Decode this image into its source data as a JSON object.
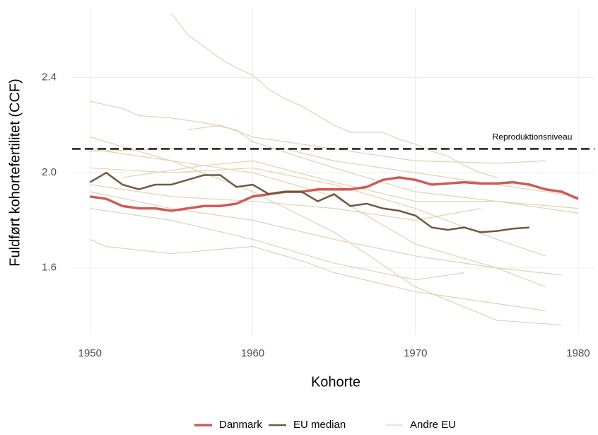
{
  "chart_data": {
    "type": "line",
    "xlabel": "Kohorte",
    "ylabel": "Fuldført kohortefertilitet (CCF)",
    "xlim": [
      1948.9,
      1981
    ],
    "ylim": [
      1.32,
      2.69
    ],
    "xticks": [
      1950,
      1960,
      1970,
      1980
    ],
    "yticks": [
      {
        "value": 1.6,
        "label": "1.6"
      },
      {
        "value": 2.0,
        "label": "2.0"
      },
      {
        "value": 2.4,
        "label": "2.4"
      }
    ],
    "grid": true,
    "legend": "bottom",
    "reference_line": {
      "value": 2.1,
      "label": "Reproduktionsniveau"
    },
    "series": [
      {
        "name": "Danmark",
        "color": "#cd5c57",
        "x": [
          1950,
          1951,
          1952,
          1953,
          1954,
          1955,
          1956,
          1957,
          1958,
          1959,
          1960,
          1961,
          1962,
          1963,
          1964,
          1965,
          1966,
          1967,
          1968,
          1969,
          1970,
          1971,
          1972,
          1973,
          1974,
          1975,
          1976,
          1977,
          1978,
          1979,
          1980
        ],
        "values": [
          1.9,
          1.89,
          1.86,
          1.85,
          1.85,
          1.84,
          1.85,
          1.86,
          1.86,
          1.87,
          1.9,
          1.91,
          1.92,
          1.92,
          1.93,
          1.93,
          1.93,
          1.94,
          1.97,
          1.98,
          1.97,
          1.95,
          1.955,
          1.96,
          1.955,
          1.955,
          1.96,
          1.95,
          1.93,
          1.92,
          1.89
        ]
      },
      {
        "name": "EU median",
        "color": "#6e5a42",
        "x": [
          1950,
          1951,
          1952,
          1953,
          1954,
          1955,
          1956,
          1957,
          1958,
          1959,
          1960,
          1961,
          1962,
          1963,
          1964,
          1965,
          1966,
          1967,
          1968,
          1969,
          1970,
          1971,
          1972,
          1973,
          1974,
          1975,
          1976,
          1977
        ],
        "values": [
          1.96,
          2.0,
          1.95,
          1.93,
          1.95,
          1.95,
          1.97,
          1.99,
          1.99,
          1.94,
          1.95,
          1.91,
          1.92,
          1.92,
          1.88,
          1.91,
          1.86,
          1.87,
          1.85,
          1.84,
          1.82,
          1.77,
          1.76,
          1.77,
          1.75,
          1.755,
          1.765,
          1.77
        ]
      },
      {
        "name": "Andre EU",
        "color": "#e2d2b0",
        "lines": [
          {
            "x": [
              1955,
              1956,
              1957,
              1958,
              1959,
              1960,
              1961,
              1962,
              1963,
              1964,
              1965,
              1966,
              1967,
              1968,
              1969,
              1970,
              1971,
              1972,
              1973,
              1974,
              1975
            ],
            "values": [
              2.67,
              2.58,
              2.53,
              2.48,
              2.44,
              2.41,
              2.35,
              2.31,
              2.28,
              2.24,
              2.2,
              2.17,
              2.17,
              2.17,
              2.14,
              2.12,
              2.09,
              2.07,
              2.03,
              2.0,
              1.98
            ]
          },
          {
            "x": [
              1950,
              1952,
              1953,
              1955,
              1957,
              1959,
              1960,
              1965,
              1970,
              1975,
              1980
            ],
            "values": [
              2.3,
              2.27,
              2.24,
              2.23,
              2.21,
              2.18,
              2.13,
              2.02,
              1.92,
              1.88,
              1.83
            ]
          },
          {
            "x": [
              1950,
              1955,
              1960,
              1965,
              1970,
              1975,
              1979
            ],
            "values": [
              2.15,
              2.05,
              1.92,
              1.75,
              1.52,
              1.38,
              1.36
            ]
          },
          {
            "x": [
              1950,
              1951,
              1955,
              1960,
              1963,
              1965,
              1970,
              1975,
              1978
            ],
            "values": [
              1.72,
              1.69,
              1.66,
              1.69,
              1.63,
              1.58,
              1.5,
              1.45,
              1.42
            ]
          },
          {
            "x": [
              1950,
              1955,
              1962,
              1965,
              1970,
              1975,
              1980
            ],
            "values": [
              2.09,
              2.1,
              2.1,
              2.05,
              2.0,
              1.95,
              1.9
            ]
          },
          {
            "x": [
              1956,
              1958,
              1960,
              1965,
              1970,
              1975,
              1978
            ],
            "values": [
              2.18,
              2.2,
              2.15,
              2.1,
              2.05,
              2.04,
              2.05
            ]
          },
          {
            "x": [
              1950,
              1955,
              1960,
              1965,
              1970,
              1975,
              1979
            ],
            "values": [
              1.92,
              1.85,
              1.8,
              1.72,
              1.65,
              1.6,
              1.57
            ]
          },
          {
            "x": [
              1950,
              1955,
              1960,
              1965,
              1970,
              1973
            ],
            "values": [
              1.85,
              1.8,
              1.72,
              1.62,
              1.55,
              1.58
            ]
          },
          {
            "x": [
              1950,
              1955,
              1960,
              1965,
              1970,
              1975,
              1978
            ],
            "values": [
              2.02,
              2.0,
              2.02,
              1.95,
              1.85,
              1.72,
              1.65
            ]
          },
          {
            "x": [
              1950,
              1955,
              1960,
              1965,
              1970,
              1974
            ],
            "values": [
              1.95,
              1.9,
              1.88,
              1.85,
              1.8,
              1.85
            ]
          },
          {
            "x": [
              1950,
              1955,
              1960,
              1965,
              1970,
              1975,
              1978
            ],
            "values": [
              2.1,
              2.05,
              2.0,
              1.9,
              1.7,
              1.6,
              1.52
            ]
          },
          {
            "x": [
              1952,
              1957,
              1960,
              1965,
              1970,
              1975,
              1980
            ],
            "values": [
              1.98,
              2.03,
              2.05,
              1.96,
              1.88,
              1.88,
              1.85
            ]
          }
        ]
      }
    ]
  }
}
